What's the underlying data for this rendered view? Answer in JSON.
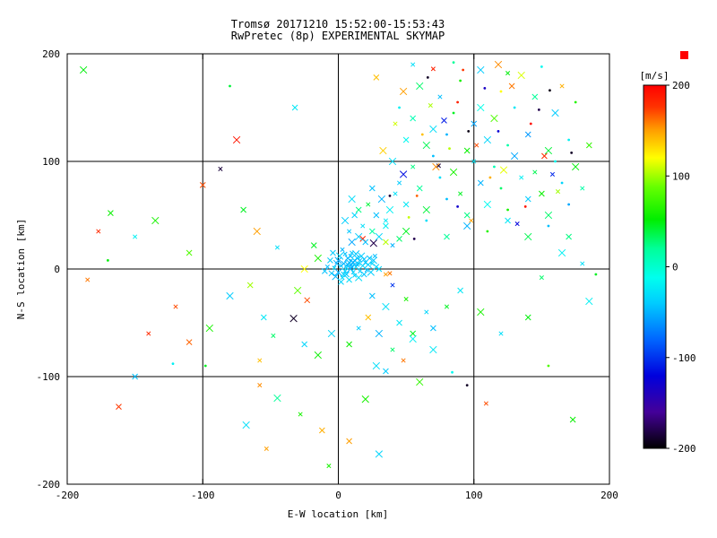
{
  "chart_data": {
    "type": "scatter",
    "title": "Tromsø 20171210 15:52:00-15:53:43",
    "subtitle": "RwPretec (8p) EXPERIMENTAL SKYMAP",
    "xlabel": "E-W location [km]",
    "ylabel": "N-S location [km]",
    "xlim": [
      -200,
      200
    ],
    "ylim": [
      -200,
      200
    ],
    "xticks": [
      -200,
      -100,
      0,
      100,
      200
    ],
    "yticks": [
      -200,
      -100,
      0,
      100,
      200
    ],
    "grid": true,
    "legend_position": "right",
    "colorbar": {
      "label": "[m/s]",
      "min": -200,
      "max": 200,
      "ticks": [
        200,
        100,
        0,
        -100,
        -200
      ],
      "marker_color": "#ff0000",
      "stops": [
        {
          "t": 0.0,
          "c": "#000000"
        },
        {
          "t": 0.1,
          "c": "#440099"
        },
        {
          "t": 0.2,
          "c": "#0000dd"
        },
        {
          "t": 0.3,
          "c": "#0066ff"
        },
        {
          "t": 0.4,
          "c": "#00ccff"
        },
        {
          "t": 0.47,
          "c": "#00ffee"
        },
        {
          "t": 0.55,
          "c": "#00ff99"
        },
        {
          "t": 0.63,
          "c": "#00ee00"
        },
        {
          "t": 0.72,
          "c": "#66ff00"
        },
        {
          "t": 0.8,
          "c": "#ffff00"
        },
        {
          "t": 0.88,
          "c": "#ff9900"
        },
        {
          "t": 0.94,
          "c": "#ff3300"
        },
        {
          "t": 1.0,
          "c": "#ff0000"
        }
      ]
    },
    "points_format": [
      "x_km",
      "y_km",
      "velocity_ms",
      "marker(1=cross,0=dot)"
    ],
    "points": [
      [
        2,
        3,
        -40,
        1
      ],
      [
        5,
        -2,
        -35,
        1
      ],
      [
        8,
        6,
        -45,
        1
      ],
      [
        -3,
        1,
        -30,
        1
      ],
      [
        10,
        2,
        -50,
        1
      ],
      [
        12,
        8,
        -40,
        1
      ],
      [
        15,
        5,
        -38,
        1
      ],
      [
        -5,
        -4,
        -42,
        1
      ],
      [
        0,
        8,
        -55,
        1
      ],
      [
        3,
        -8,
        -33,
        1
      ],
      [
        7,
        10,
        -47,
        1
      ],
      [
        18,
        3,
        -36,
        1
      ],
      [
        20,
        6,
        -44,
        1
      ],
      [
        6,
        -5,
        -41,
        1
      ],
      [
        9,
        0,
        -52,
        1
      ],
      [
        11,
        -3,
        -39,
        1
      ],
      [
        14,
        10,
        -43,
        1
      ],
      [
        1,
        12,
        -37,
        1
      ],
      [
        -8,
        2,
        -46,
        1
      ],
      [
        4,
        5,
        -49,
        1
      ],
      [
        13,
        2,
        -34,
        1
      ],
      [
        16,
        -2,
        -40,
        1
      ],
      [
        19,
        9,
        -45,
        1
      ],
      [
        22,
        4,
        -38,
        1
      ],
      [
        5,
        14,
        -44,
        1
      ],
      [
        8,
        -10,
        -32,
        1
      ],
      [
        -2,
        -7,
        -48,
        1
      ],
      [
        10,
        15,
        -42,
        1
      ],
      [
        2,
        -12,
        -36,
        1
      ],
      [
        17,
        12,
        -40,
        1
      ],
      [
        21,
        -1,
        -46,
        1
      ],
      [
        -6,
        8,
        -39,
        1
      ],
      [
        0,
        -3,
        -51,
        1
      ],
      [
        25,
        5,
        -35,
        1
      ],
      [
        23,
        10,
        -43,
        1
      ],
      [
        7,
        4,
        -47,
        1
      ],
      [
        12,
        -6,
        -38,
        1
      ],
      [
        -10,
        -2,
        -44,
        1
      ],
      [
        15,
        -8,
        -31,
        1
      ],
      [
        3,
        18,
        -49,
        1
      ],
      [
        28,
        2,
        -37,
        1
      ],
      [
        26,
        8,
        -41,
        1
      ],
      [
        9,
        12,
        -45,
        1
      ],
      [
        -4,
        15,
        -40,
        1
      ],
      [
        11,
        6,
        -53,
        1
      ],
      [
        6,
        1,
        -36,
        1
      ],
      [
        19,
        -5,
        -42,
        1
      ],
      [
        24,
        -3,
        -39,
        1
      ],
      [
        14,
        4,
        -46,
        1
      ],
      [
        30,
        0,
        -34,
        1
      ],
      [
        -1,
        5,
        -50,
        1
      ],
      [
        16,
        8,
        -43,
        1
      ],
      [
        4,
        -5,
        -38,
        1
      ],
      [
        13,
        14,
        -41,
        1
      ],
      [
        27,
        12,
        -45,
        1
      ],
      [
        -23,
        -29,
        170,
        1
      ],
      [
        -30,
        -20,
        85,
        1
      ],
      [
        40,
        -15,
        -100,
        1
      ],
      [
        35,
        25,
        105,
        1
      ],
      [
        -15,
        10,
        60,
        1
      ],
      [
        35,
        -5,
        150,
        1
      ],
      [
        -18,
        22,
        45,
        1
      ],
      [
        -25,
        0,
        120,
        1
      ],
      [
        38,
        -4,
        160,
        1
      ],
      [
        18,
        28,
        185,
        1
      ],
      [
        26,
        24,
        -180,
        1
      ],
      [
        74,
        96,
        -185,
        1
      ],
      [
        45,
        150,
        -20,
        0
      ],
      [
        60,
        170,
        30,
        1
      ],
      [
        75,
        160,
        -45,
        1
      ],
      [
        90,
        175,
        60,
        0
      ],
      [
        105,
        150,
        -10,
        1
      ],
      [
        120,
        165,
        120,
        0
      ],
      [
        55,
        140,
        10,
        1
      ],
      [
        70,
        130,
        -30,
        1
      ],
      [
        85,
        145,
        45,
        0
      ],
      [
        100,
        135,
        -55,
        1
      ],
      [
        115,
        140,
        80,
        1
      ],
      [
        130,
        150,
        -25,
        0
      ],
      [
        145,
        160,
        20,
        1
      ],
      [
        160,
        145,
        -40,
        1
      ],
      [
        175,
        155,
        65,
        0
      ],
      [
        50,
        120,
        -15,
        1
      ],
      [
        65,
        115,
        35,
        1
      ],
      [
        80,
        125,
        -50,
        0
      ],
      [
        95,
        110,
        55,
        1
      ],
      [
        110,
        120,
        -35,
        1
      ],
      [
        125,
        115,
        15,
        0
      ],
      [
        140,
        125,
        -60,
        1
      ],
      [
        155,
        110,
        40,
        1
      ],
      [
        170,
        120,
        -20,
        0
      ],
      [
        185,
        115,
        70,
        1
      ],
      [
        40,
        100,
        -30,
        1
      ],
      [
        55,
        95,
        25,
        1
      ],
      [
        70,
        105,
        -45,
        0
      ],
      [
        85,
        90,
        60,
        1
      ],
      [
        100,
        100,
        -25,
        1
      ],
      [
        115,
        95,
        10,
        0
      ],
      [
        130,
        105,
        -55,
        1
      ],
      [
        145,
        90,
        35,
        1
      ],
      [
        160,
        100,
        -15,
        0
      ],
      [
        175,
        95,
        50,
        1
      ],
      [
        45,
        80,
        -40,
        1
      ],
      [
        60,
        75,
        20,
        1
      ],
      [
        75,
        85,
        -30,
        0
      ],
      [
        90,
        70,
        45,
        1
      ],
      [
        105,
        80,
        -50,
        1
      ],
      [
        120,
        75,
        30,
        0
      ],
      [
        135,
        85,
        -20,
        1
      ],
      [
        150,
        70,
        55,
        1
      ],
      [
        165,
        80,
        -35,
        0
      ],
      [
        180,
        75,
        15,
        1
      ],
      [
        50,
        60,
        -25,
        1
      ],
      [
        65,
        55,
        40,
        1
      ],
      [
        80,
        65,
        -45,
        0
      ],
      [
        95,
        50,
        25,
        1
      ],
      [
        110,
        60,
        -15,
        1
      ],
      [
        125,
        55,
        60,
        0
      ],
      [
        140,
        65,
        -40,
        1
      ],
      [
        155,
        50,
        30,
        1
      ],
      [
        170,
        60,
        -55,
        0
      ],
      [
        35,
        40,
        -20,
        1
      ],
      [
        50,
        35,
        45,
        1
      ],
      [
        65,
        45,
        -30,
        0
      ],
      [
        80,
        30,
        20,
        1
      ],
      [
        95,
        40,
        -50,
        1
      ],
      [
        110,
        35,
        65,
        0
      ],
      [
        125,
        45,
        -25,
        1
      ],
      [
        140,
        30,
        35,
        1
      ],
      [
        155,
        40,
        -45,
        0
      ],
      [
        170,
        30,
        25,
        1
      ],
      [
        48,
        165,
        150,
        1
      ],
      [
        88,
        155,
        185,
        0
      ],
      [
        128,
        170,
        160,
        1
      ],
      [
        62,
        125,
        140,
        0
      ],
      [
        102,
        115,
        170,
        1
      ],
      [
        142,
        135,
        195,
        0
      ],
      [
        72,
        95,
        155,
        1
      ],
      [
        112,
        85,
        145,
        0
      ],
      [
        152,
        105,
        180,
        1
      ],
      [
        58,
        68,
        165,
        0
      ],
      [
        98,
        45,
        150,
        1
      ],
      [
        138,
        58,
        190,
        0
      ],
      [
        33,
        110,
        135,
        1
      ],
      [
        165,
        170,
        145,
        1
      ],
      [
        92,
        185,
        175,
        0
      ],
      [
        118,
        190,
        155,
        1
      ],
      [
        42,
        135,
        110,
        1
      ],
      [
        82,
        112,
        105,
        0
      ],
      [
        122,
        92,
        115,
        1
      ],
      [
        162,
        72,
        100,
        1
      ],
      [
        52,
        48,
        108,
        0
      ],
      [
        135,
        180,
        112,
        1
      ],
      [
        68,
        152,
        102,
        1
      ],
      [
        78,
        138,
        -110,
        1
      ],
      [
        118,
        128,
        -125,
        0
      ],
      [
        158,
        88,
        -105,
        1
      ],
      [
        88,
        58,
        -130,
        0
      ],
      [
        48,
        88,
        -115,
        1
      ],
      [
        132,
        42,
        -120,
        1
      ],
      [
        108,
        168,
        -135,
        0
      ],
      [
        66,
        178,
        -190,
        0
      ],
      [
        148,
        148,
        -180,
        0
      ],
      [
        96,
        128,
        -195,
        0
      ],
      [
        38,
        68,
        -185,
        0
      ],
      [
        172,
        108,
        -190,
        0
      ],
      [
        56,
        28,
        -180,
        0
      ],
      [
        156,
        166,
        -195,
        0
      ],
      [
        55,
        190,
        -30,
        1
      ],
      [
        85,
        192,
        20,
        0
      ],
      [
        105,
        185,
        -40,
        1
      ],
      [
        125,
        182,
        50,
        1
      ],
      [
        28,
        178,
        140,
        1
      ],
      [
        150,
        188,
        -15,
        0
      ],
      [
        70,
        186,
        185,
        1
      ],
      [
        20,
        25,
        -45,
        1
      ],
      [
        30,
        30,
        -35,
        1
      ],
      [
        40,
        22,
        -50,
        1
      ],
      [
        25,
        35,
        15,
        1
      ],
      [
        15,
        30,
        -40,
        1
      ],
      [
        35,
        45,
        -25,
        1
      ],
      [
        45,
        28,
        30,
        1
      ],
      [
        10,
        25,
        -55,
        1
      ],
      [
        18,
        40,
        -30,
        1
      ],
      [
        28,
        50,
        -45,
        1
      ],
      [
        38,
        55,
        -20,
        1
      ],
      [
        22,
        60,
        40,
        1
      ],
      [
        12,
        50,
        -35,
        1
      ],
      [
        32,
        65,
        -50,
        1
      ],
      [
        8,
        35,
        -42,
        1
      ],
      [
        15,
        55,
        25,
        1
      ],
      [
        5,
        45,
        -38,
        1
      ],
      [
        42,
        70,
        -28,
        1
      ],
      [
        25,
        75,
        -44,
        1
      ],
      [
        10,
        65,
        -32,
        1
      ],
      [
        -87,
        93,
        -185,
        1
      ],
      [
        -100,
        78,
        170,
        1
      ],
      [
        -135,
        45,
        60,
        1
      ],
      [
        -150,
        30,
        -20,
        1
      ],
      [
        -70,
        55,
        45,
        1
      ],
      [
        -60,
        35,
        150,
        1
      ],
      [
        -45,
        20,
        -30,
        1
      ],
      [
        -110,
        15,
        80,
        1
      ],
      [
        -170,
        8,
        50,
        0
      ],
      [
        -185,
        -10,
        160,
        1
      ],
      [
        -65,
        -15,
        100,
        1
      ],
      [
        -80,
        -25,
        -40,
        1
      ],
      [
        -120,
        -35,
        170,
        1
      ],
      [
        -55,
        -45,
        -25,
        1
      ],
      [
        -95,
        -55,
        60,
        1
      ],
      [
        -140,
        -60,
        180,
        1
      ],
      [
        -110,
        -68,
        165,
        1
      ],
      [
        -33,
        -46,
        -190,
        1
      ],
      [
        -48,
        -62,
        30,
        1
      ],
      [
        -25,
        -70,
        -35,
        1
      ],
      [
        -15,
        -80,
        55,
        1
      ],
      [
        -58,
        -85,
        140,
        1
      ],
      [
        -98,
        -90,
        45,
        0
      ],
      [
        -122,
        -88,
        -20,
        0
      ],
      [
        -58,
        -108,
        155,
        1
      ],
      [
        -162,
        -128,
        175,
        1
      ],
      [
        -45,
        -120,
        20,
        1
      ],
      [
        -28,
        -135,
        60,
        1
      ],
      [
        -12,
        -150,
        145,
        1
      ],
      [
        -68,
        -145,
        -30,
        1
      ],
      [
        -53,
        -167,
        150,
        1
      ],
      [
        -150,
        -100,
        -45,
        1
      ],
      [
        -75,
        120,
        190,
        1
      ],
      [
        -177,
        35,
        180,
        1
      ],
      [
        -168,
        52,
        55,
        1
      ],
      [
        -188,
        185,
        50,
        1
      ],
      [
        -80,
        170,
        40,
        0
      ],
      [
        -32,
        150,
        -25,
        1
      ],
      [
        20,
        -121,
        60,
        1
      ],
      [
        109,
        -125,
        170,
        1
      ],
      [
        173,
        -140,
        55,
        1
      ],
      [
        84,
        -96,
        -15,
        0
      ],
      [
        95,
        -108,
        -190,
        0
      ],
      [
        8,
        -160,
        150,
        1
      ],
      [
        30,
        -172,
        -35,
        1
      ],
      [
        -7,
        -183,
        60,
        1
      ],
      [
        55,
        -60,
        45,
        1
      ],
      [
        70,
        -75,
        -25,
        1
      ],
      [
        48,
        -85,
        160,
        1
      ],
      [
        35,
        -95,
        -40,
        1
      ],
      [
        60,
        -105,
        70,
        1
      ],
      [
        120,
        -60,
        -30,
        1
      ],
      [
        140,
        -45,
        50,
        1
      ],
      [
        185,
        -30,
        -20,
        1
      ],
      [
        155,
        -90,
        80,
        0
      ],
      [
        25,
        -25,
        -45,
        1
      ],
      [
        35,
        -35,
        -30,
        1
      ],
      [
        50,
        -28,
        60,
        1
      ],
      [
        45,
        -50,
        -25,
        1
      ],
      [
        30,
        -60,
        -50,
        1
      ],
      [
        65,
        -40,
        -35,
        1
      ],
      [
        22,
        -45,
        140,
        1
      ],
      [
        55,
        -65,
        -20,
        1
      ],
      [
        40,
        -75,
        30,
        1
      ],
      [
        70,
        -55,
        -45,
        1
      ],
      [
        28,
        -90,
        -30,
        1
      ],
      [
        15,
        -55,
        -40,
        1
      ],
      [
        8,
        -70,
        55,
        1
      ],
      [
        -5,
        -60,
        -35,
        1
      ],
      [
        80,
        -35,
        45,
        1
      ],
      [
        90,
        -20,
        -25,
        1
      ],
      [
        105,
        -40,
        60,
        1
      ],
      [
        180,
        5,
        -30,
        1
      ],
      [
        190,
        -5,
        45,
        0
      ],
      [
        165,
        15,
        -20,
        1
      ],
      [
        150,
        -8,
        30,
        1
      ]
    ]
  }
}
